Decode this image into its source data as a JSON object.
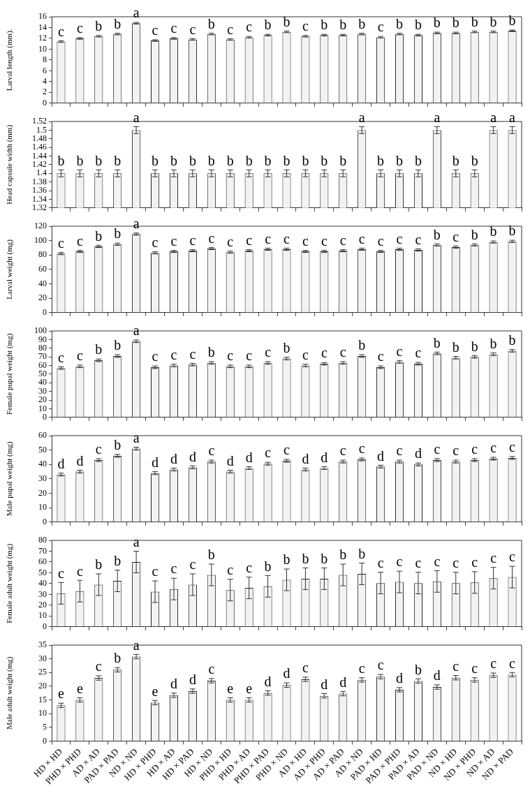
{
  "chart_data": [
    {
      "type": "bar",
      "ylabel": "Larval length (mm).",
      "categories": [
        null,
        null,
        null,
        null,
        null,
        null,
        null,
        null,
        null,
        null,
        null,
        null,
        null,
        null,
        null,
        null,
        null,
        null,
        null,
        null,
        null,
        null,
        null,
        null,
        null
      ],
      "tick_labels": "y",
      "grid": false,
      "legend": false,
      "ylim": [
        0,
        16
      ],
      "yticks": [
        0,
        2,
        4,
        6,
        8,
        10,
        12,
        14,
        16
      ],
      "color": "#f2f2f2",
      "values": [
        11.4,
        12.0,
        12.4,
        12.8,
        14.8,
        11.6,
        12.0,
        11.8,
        12.8,
        11.8,
        12.2,
        12.6,
        13.2,
        12.4,
        12.6,
        12.6,
        12.8,
        12.2,
        12.8,
        12.6,
        13.0,
        13.0,
        13.2,
        13.2,
        13.4
      ],
      "errors": [
        0.15,
        0.15,
        0.15,
        0.15,
        0.15,
        0.15,
        0.15,
        0.15,
        0.15,
        0.15,
        0.15,
        0.15,
        0.15,
        0.15,
        0.15,
        0.15,
        0.15,
        0.15,
        0.15,
        0.15,
        0.15,
        0.15,
        0.15,
        0.15,
        0.15
      ],
      "value_labels": [
        "c",
        "c",
        "b",
        "b",
        "a",
        "c",
        "c",
        "c",
        "b",
        "c",
        "c",
        "b",
        "b",
        "c",
        "b",
        "b",
        "b",
        "c",
        "b",
        "b",
        "b",
        "b",
        "b",
        "b",
        "b"
      ]
    },
    {
      "type": "bar",
      "ylabel": "Head capsule width (mm)",
      "categories": [
        null,
        null,
        null,
        null,
        null,
        null,
        null,
        null,
        null,
        null,
        null,
        null,
        null,
        null,
        null,
        null,
        null,
        null,
        null,
        null,
        null,
        null,
        null,
        null,
        null
      ],
      "tick_labels": "y",
      "grid": false,
      "legend": false,
      "ylim": [
        1.32,
        1.52
      ],
      "yticks": [
        1.32,
        1.34,
        1.36,
        1.38,
        1.4,
        1.42,
        1.44,
        1.46,
        1.48,
        1.5,
        1.52
      ],
      "color": "#f2f2f2",
      "values": [
        1.4,
        1.4,
        1.4,
        1.4,
        1.5,
        1.4,
        1.4,
        1.4,
        1.4,
        1.4,
        1.4,
        1.4,
        1.4,
        1.4,
        1.4,
        1.4,
        1.5,
        1.4,
        1.4,
        1.4,
        1.5,
        1.4,
        1.4,
        1.5,
        1.5
      ],
      "errors": [
        0.008,
        0.008,
        0.008,
        0.008,
        0.008,
        0.008,
        0.008,
        0.008,
        0.008,
        0.008,
        0.008,
        0.008,
        0.008,
        0.008,
        0.008,
        0.008,
        0.008,
        0.008,
        0.008,
        0.008,
        0.008,
        0.008,
        0.008,
        0.008,
        0.008
      ],
      "value_labels": [
        "b",
        "b",
        "b",
        "b",
        "a",
        "b",
        "b",
        "b",
        "b",
        "b",
        "b",
        "b",
        "b",
        "b",
        "b",
        "b",
        "a",
        "b",
        "b",
        "b",
        "a",
        "b",
        "b",
        "a",
        "a"
      ]
    },
    {
      "type": "bar",
      "ylabel": "Larval weight (mg)",
      "categories": [
        null,
        null,
        null,
        null,
        null,
        null,
        null,
        null,
        null,
        null,
        null,
        null,
        null,
        null,
        null,
        null,
        null,
        null,
        null,
        null,
        null,
        null,
        null,
        null,
        null
      ],
      "tick_labels": "y",
      "grid": false,
      "legend": false,
      "ylim": [
        0,
        120
      ],
      "yticks": [
        0,
        20,
        40,
        60,
        80,
        100,
        120
      ],
      "color": "#f2f2f2",
      "values": [
        82,
        85,
        92,
        95,
        109,
        83,
        85,
        86,
        89,
        84,
        86,
        88,
        88,
        85,
        85,
        86,
        88,
        85,
        88,
        87,
        94,
        91,
        94,
        98,
        99
      ],
      "errors": [
        1.5,
        1.5,
        1.5,
        1.5,
        1.5,
        1.5,
        1.5,
        1.5,
        1.5,
        1.5,
        1.5,
        1.5,
        1.5,
        1.5,
        1.5,
        1.5,
        1.5,
        1.5,
        1.5,
        1.5,
        1.5,
        1.5,
        1.5,
        1.5,
        1.5
      ],
      "value_labels": [
        "c",
        "c",
        "b",
        "b",
        "a",
        "c",
        "c",
        "c",
        "c",
        "c",
        "c",
        "c",
        "c",
        "c",
        "c",
        "c",
        "c",
        "c",
        "c",
        "c",
        "b",
        "c",
        "b",
        "b",
        "b"
      ]
    },
    {
      "type": "bar",
      "ylabel": "Female pupal weight (mg)",
      "categories": [
        null,
        null,
        null,
        null,
        null,
        null,
        null,
        null,
        null,
        null,
        null,
        null,
        null,
        null,
        null,
        null,
        null,
        null,
        null,
        null,
        null,
        null,
        null,
        null,
        null
      ],
      "tick_labels": "y",
      "grid": false,
      "legend": false,
      "ylim": [
        0,
        100
      ],
      "yticks": [
        0,
        10,
        20,
        30,
        40,
        50,
        60,
        70,
        80,
        90,
        100
      ],
      "color": "#f2f2f2",
      "values": [
        57,
        59,
        66,
        71,
        88,
        58,
        60,
        61,
        63,
        59,
        59,
        63,
        68,
        60,
        62,
        63,
        71,
        58,
        64,
        62,
        74,
        69,
        70,
        73,
        77
      ],
      "errors": [
        1.5,
        1.5,
        1.5,
        1.5,
        1.5,
        1.5,
        1.5,
        1.5,
        1.5,
        1.5,
        1.5,
        1.5,
        1.5,
        1.5,
        1.5,
        1.5,
        1.5,
        1.5,
        1.5,
        1.5,
        1.5,
        1.5,
        1.5,
        1.5,
        1.5
      ],
      "value_labels": [
        "c",
        "c",
        "b",
        "b",
        "a",
        "c",
        "c",
        "c",
        "b",
        "c",
        "c",
        "c",
        "b",
        "c",
        "c",
        "c",
        "b",
        "c",
        "c",
        "c",
        "b",
        "b",
        "b",
        "b",
        "b"
      ]
    },
    {
      "type": "bar",
      "ylabel": "Male pupal weight (mg)",
      "categories": [
        null,
        null,
        null,
        null,
        null,
        null,
        null,
        null,
        null,
        null,
        null,
        null,
        null,
        null,
        null,
        null,
        null,
        null,
        null,
        null,
        null,
        null,
        null,
        null,
        null
      ],
      "tick_labels": "y",
      "grid": false,
      "legend": false,
      "ylim": [
        0,
        60
      ],
      "yticks": [
        0,
        10,
        20,
        30,
        40,
        50,
        60
      ],
      "color": "#f2f2f2",
      "values": [
        33,
        35,
        43,
        46,
        51,
        34,
        36.5,
        38,
        42,
        35,
        37.5,
        40.5,
        42.5,
        36.5,
        37.5,
        42,
        43.5,
        38.5,
        42,
        40,
        43,
        42,
        43,
        44,
        44.5
      ],
      "errors": [
        1,
        1,
        1,
        1,
        1,
        1,
        1,
        1,
        1,
        1,
        1,
        1,
        1,
        1,
        1,
        1,
        1,
        1,
        1,
        1,
        1,
        1,
        1,
        1,
        1
      ],
      "value_labels": [
        "d",
        "d",
        "c",
        "b",
        "a",
        "d",
        "d",
        "d",
        "c",
        "d",
        "d",
        "c",
        "c",
        "d",
        "d",
        "c",
        "c",
        "d",
        "c",
        "d",
        "c",
        "c",
        "c",
        "c",
        "c"
      ]
    },
    {
      "type": "bar",
      "ylabel": "Female adult weight (mg)",
      "categories": [
        null,
        null,
        null,
        null,
        null,
        null,
        null,
        null,
        null,
        null,
        null,
        null,
        null,
        null,
        null,
        null,
        null,
        null,
        null,
        null,
        null,
        null,
        null,
        null,
        null
      ],
      "tick_labels": "y",
      "grid": false,
      "legend": false,
      "ylim": [
        0,
        80
      ],
      "yticks": [
        0,
        10,
        20,
        30,
        40,
        50,
        60,
        70,
        80
      ],
      "color": "#f2f2f2",
      "values": [
        31,
        33,
        39,
        42.5,
        60,
        32.5,
        35,
        39,
        48,
        34,
        36,
        37.5,
        43.5,
        44.5,
        44.5,
        48,
        49,
        40.5,
        41.5,
        40.5,
        42,
        40.5,
        41,
        45,
        46
      ],
      "errors": [
        10,
        10,
        10,
        10,
        10,
        10,
        10,
        10,
        10,
        10,
        10,
        10,
        10,
        10,
        10,
        10,
        10,
        10,
        10,
        10,
        10,
        10,
        10,
        10,
        10
      ],
      "value_labels": [
        "c",
        "c",
        "b",
        "b",
        "a",
        "c",
        "c",
        "c",
        "b",
        "c",
        "c",
        "b",
        "b",
        "b",
        "b",
        "b",
        "b",
        "c",
        "c",
        "c",
        "c",
        "c",
        "c",
        "c",
        "c"
      ]
    },
    {
      "type": "bar",
      "ylabel": "Male adult weight (mg)",
      "categories": [
        "HD × HD",
        "PHD × PHD",
        "AD × AD",
        "PAD × PAD",
        "ND × ND",
        "HD × PHD",
        "HD × AD",
        "HD × PAD",
        "HD × ND",
        "PHD × HD",
        "PHD × AD",
        "PHD × PAD",
        "PHD × ND",
        "AD × HD",
        "AD × PHD",
        "AD × PAD",
        "AD × ND",
        "PAD × HD",
        "PAD × PHD",
        "PAD × AD",
        "PAD × ND",
        "ND × HD",
        "ND × PHD",
        "ND × AD",
        "ND × PAD"
      ],
      "grid": false,
      "legend": false,
      "ylim": [
        0,
        35
      ],
      "yticks": [
        0,
        5,
        10,
        15,
        20,
        25,
        30,
        35
      ],
      "color": "#f2f2f2",
      "values": [
        13,
        15,
        23,
        26,
        30.8,
        14,
        16.7,
        18.2,
        22,
        15,
        15,
        17.5,
        20.4,
        22.5,
        16.5,
        17.3,
        22.3,
        23.5,
        18.7,
        21.9,
        19.7,
        23.1,
        22.3,
        24,
        24.2
      ],
      "errors": [
        0.8,
        0.8,
        0.8,
        0.8,
        0.8,
        0.8,
        0.8,
        0.8,
        0.8,
        0.8,
        0.8,
        0.8,
        0.8,
        0.8,
        0.8,
        0.8,
        0.8,
        0.8,
        0.8,
        0.8,
        0.8,
        0.8,
        0.8,
        0.8,
        0.8
      ],
      "value_labels": [
        "e",
        "e",
        "c",
        "b",
        "a",
        "e",
        "d",
        "d",
        "c",
        "e",
        "e",
        "d",
        "d",
        "c",
        "d",
        "d",
        "c",
        "c",
        "d",
        "b",
        "d",
        "c",
        "c",
        "c",
        "c"
      ]
    }
  ]
}
